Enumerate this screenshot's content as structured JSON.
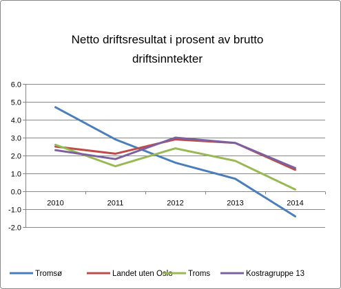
{
  "chart_data": {
    "type": "line",
    "title_lines": [
      "Netto driftsresultat i prosent av brutto",
      "driftsinntekter"
    ],
    "categories": [
      "2010",
      "2011",
      "2012",
      "2013",
      "2014"
    ],
    "ylim": [
      -2.0,
      6.0
    ],
    "yticks": [
      "6.0",
      "5.0",
      "4.0",
      "3.0",
      "2.0",
      "1.0",
      "0.0",
      "-1.0",
      "-2.0"
    ],
    "ytick_values": [
      6,
      5,
      4,
      3,
      2,
      1,
      0,
      -1,
      -2
    ],
    "grid": "horizontal",
    "legend_position": "bottom",
    "series": [
      {
        "name": "Tromsø",
        "color": "#4a7ebb",
        "values": [
          4.7,
          2.9,
          1.6,
          0.7,
          -1.4
        ]
      },
      {
        "name": "Landet uten Oslo",
        "color": "#be4b48",
        "values": [
          2.5,
          2.1,
          2.9,
          2.7,
          1.2
        ]
      },
      {
        "name": "Troms",
        "color": "#98b954",
        "values": [
          2.6,
          1.4,
          2.4,
          1.7,
          0.1
        ]
      },
      {
        "name": "Kostragruppe 13",
        "color": "#7d60a0",
        "values": [
          2.3,
          1.8,
          3.0,
          2.7,
          1.3
        ]
      }
    ]
  }
}
